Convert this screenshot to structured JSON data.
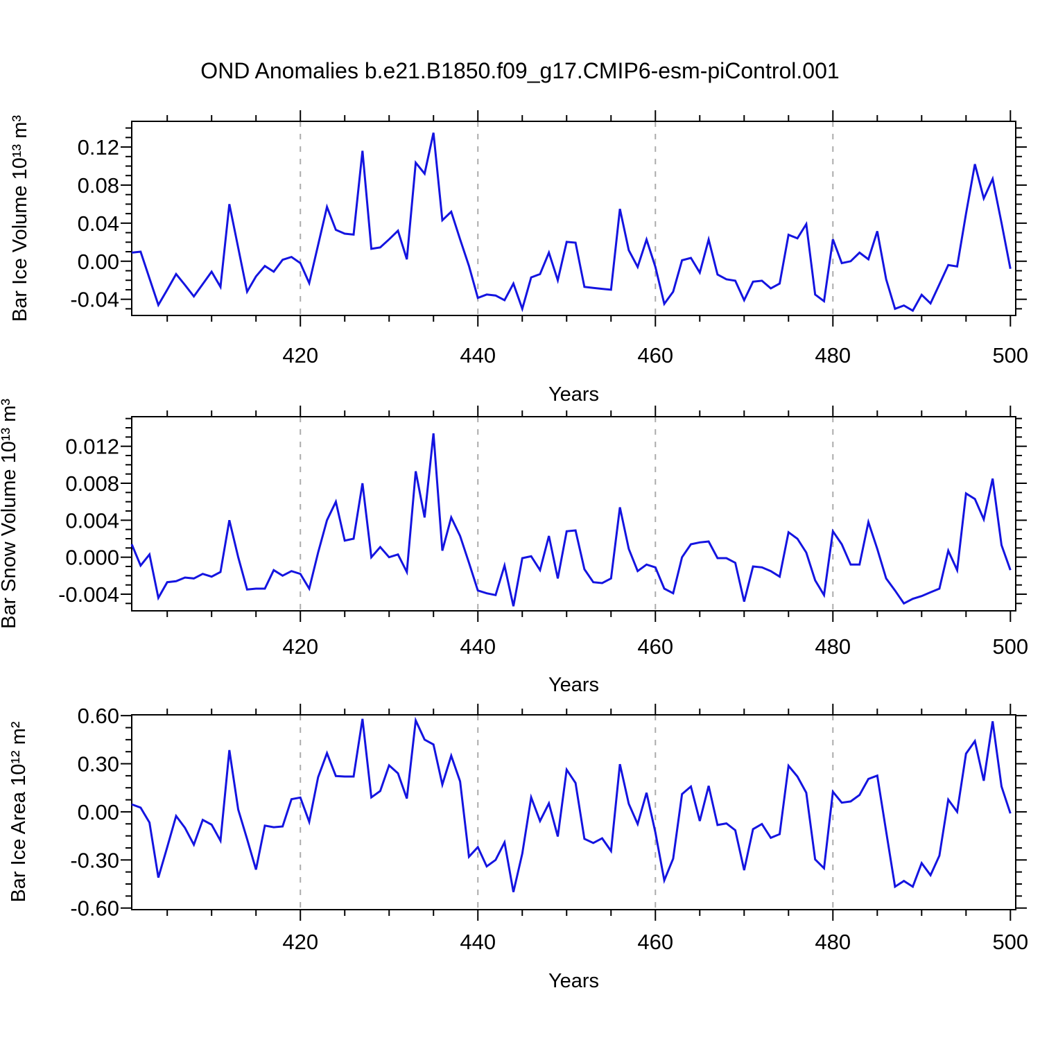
{
  "figure": {
    "title": "OND Anomalies b.e21.B1850.f09_g17.CMIP6-esm-piControl.001",
    "background": "#FFFFFF",
    "frame_color": "#000000",
    "text_color": "#000000",
    "grid_color": "#ABABAB",
    "line_color": "#1414E0"
  },
  "x_axis": {
    "label": "Years",
    "xlim": [
      401,
      500.6
    ],
    "tick_values": [
      420,
      440,
      460,
      480,
      500
    ],
    "tick_labels": [
      "420",
      "440",
      "460",
      "480",
      "500"
    ],
    "minor_step": 5,
    "gridlines": [
      420,
      440,
      460,
      480
    ]
  },
  "chart_data": [
    {
      "type": "line",
      "ylabel": "Bar Ice Volume 10¹³ m³",
      "xlabel": "Years",
      "legend": "none",
      "grid": "vertical-dashed",
      "ylim": [
        -0.057,
        0.147
      ],
      "ytick_values": [
        -0.04,
        0.0,
        0.04,
        0.08,
        0.12
      ],
      "ytick_labels": [
        "-0.04",
        "0.00",
        "0.04",
        "0.08",
        "0.12"
      ],
      "y_minor_step": 0.01,
      "x_years_start": 401,
      "x_years_end": 500,
      "values": [
        0.009,
        0.01,
        -0.018,
        -0.046,
        -0.03,
        -0.0135,
        -0.025,
        -0.037,
        -0.024,
        -0.011,
        -0.027,
        0.06,
        0.014,
        -0.032,
        -0.016,
        -0.005,
        -0.011,
        0.0015,
        0.0045,
        -0.002,
        -0.023,
        0.017,
        0.057,
        0.033,
        0.029,
        0.028,
        0.116,
        0.013,
        0.0145,
        0.023,
        0.032,
        0.002,
        0.1035,
        0.092,
        0.135,
        0.043,
        0.052,
        0.023,
        -0.005,
        -0.0385,
        -0.035,
        -0.036,
        -0.041,
        -0.0235,
        -0.05,
        -0.017,
        -0.0135,
        0.009,
        -0.02,
        0.0203,
        0.0195,
        -0.027,
        -0.028,
        -0.029,
        -0.03,
        0.055,
        0.0115,
        -0.006,
        0.0228,
        -0.006,
        -0.0448,
        -0.032,
        0.001,
        0.0035,
        -0.012,
        0.0228,
        -0.014,
        -0.019,
        -0.0205,
        -0.041,
        -0.0215,
        -0.0205,
        -0.0285,
        -0.0235,
        0.0278,
        0.024,
        0.039,
        -0.035,
        -0.042,
        0.023,
        -0.002,
        0.0,
        0.009,
        0.002,
        0.0315,
        -0.019,
        -0.05,
        -0.0465,
        -0.052,
        -0.0353,
        -0.0443,
        -0.0243,
        -0.004,
        -0.0055,
        0.05,
        0.102,
        0.066,
        0.0865,
        0.0403,
        -0.008
      ]
    },
    {
      "type": "line",
      "ylabel": "Bar Snow Volume 10¹³ m³",
      "xlabel": "Years",
      "legend": "none",
      "grid": "vertical-dashed",
      "ylim": [
        -0.0058,
        0.0152
      ],
      "ytick_values": [
        -0.004,
        0.0,
        0.004,
        0.008,
        0.012
      ],
      "ytick_labels": [
        "-0.004",
        "0.000",
        "0.004",
        "0.008",
        "0.012"
      ],
      "y_minor_step": 0.001,
      "x_years_start": 401,
      "x_years_end": 500,
      "values": [
        0.0014,
        -0.0009,
        0.0003,
        -0.0044,
        -0.0027,
        -0.0026,
        -0.0022,
        -0.0023,
        -0.0018,
        -0.0021,
        -0.0016,
        0.004,
        0.0,
        -0.0035,
        -0.0034,
        -0.0034,
        -0.0014,
        -0.002,
        -0.0015,
        -0.0018,
        -0.0034,
        0.0005,
        0.004,
        0.006,
        0.0018,
        0.002,
        0.008,
        0.0,
        0.0011,
        0.0,
        0.0003,
        -0.0016,
        0.0093,
        0.0043,
        0.0134,
        0.0007,
        0.0043,
        0.0023,
        -0.0006,
        -0.0036,
        -0.0039,
        -0.0041,
        -0.0009,
        -0.0053,
        -0.0001,
        0.0001,
        -0.0014,
        0.0023,
        -0.0023,
        0.0028,
        0.0029,
        -0.0013,
        -0.0027,
        -0.0028,
        -0.0023,
        0.0054,
        0.0009,
        -0.0015,
        -0.0008,
        -0.0011,
        -0.0034,
        -0.0039,
        0.0,
        0.0014,
        0.0016,
        0.0017,
        -0.0001,
        -0.0001,
        -0.0006,
        -0.0048,
        -0.001,
        -0.0011,
        -0.0015,
        -0.0021,
        0.0027,
        0.002,
        0.0005,
        -0.0025,
        -0.0041,
        0.0028,
        0.0014,
        -0.0008,
        -0.0008,
        0.0038,
        0.0009,
        -0.0023,
        -0.0036,
        -0.005,
        -0.0045,
        -0.0042,
        -0.0038,
        -0.0034,
        0.0007,
        -0.0014,
        0.0069,
        0.0063,
        0.0041,
        0.0085,
        0.0013,
        -0.0014
      ]
    },
    {
      "type": "line",
      "ylabel": "Bar Ice Area 10¹² m²",
      "xlabel": "Years",
      "legend": "none",
      "grid": "vertical-dashed",
      "ylim": [
        -0.61,
        0.605
      ],
      "ytick_values": [
        -0.6,
        -0.3,
        0.0,
        0.3,
        0.6
      ],
      "ytick_labels": [
        "-0.60",
        "-0.30",
        "0.00",
        "0.30",
        "0.60"
      ],
      "y_minor_step": 0.075,
      "x_years_start": 401,
      "x_years_end": 500,
      "values": [
        0.047,
        0.026,
        -0.067,
        -0.41,
        -0.22,
        -0.026,
        -0.1,
        -0.205,
        -0.05,
        -0.08,
        -0.18,
        0.385,
        0.014,
        -0.17,
        -0.36,
        -0.086,
        -0.096,
        -0.091,
        0.079,
        0.089,
        -0.062,
        0.216,
        0.366,
        0.223,
        0.22,
        0.22,
        0.58,
        0.09,
        0.13,
        0.29,
        0.24,
        0.083,
        0.57,
        0.45,
        0.42,
        0.17,
        0.35,
        0.19,
        -0.28,
        -0.22,
        -0.34,
        -0.3,
        -0.19,
        -0.5,
        -0.26,
        0.09,
        -0.057,
        0.053,
        -0.154,
        0.263,
        0.18,
        -0.168,
        -0.194,
        -0.165,
        -0.244,
        0.297,
        0.05,
        -0.076,
        0.119,
        -0.129,
        -0.427,
        -0.292,
        0.111,
        0.158,
        -0.057,
        0.162,
        -0.082,
        -0.072,
        -0.115,
        -0.364,
        -0.108,
        -0.076,
        -0.162,
        -0.139,
        0.287,
        0.22,
        0.119,
        -0.297,
        -0.352,
        0.125,
        0.057,
        0.065,
        0.105,
        0.205,
        0.226,
        -0.122,
        -0.467,
        -0.431,
        -0.467,
        -0.32,
        -0.395,
        -0.273,
        0.076,
        0.0,
        0.363,
        0.441,
        0.194,
        0.565,
        0.158,
        -0.01
      ]
    }
  ]
}
